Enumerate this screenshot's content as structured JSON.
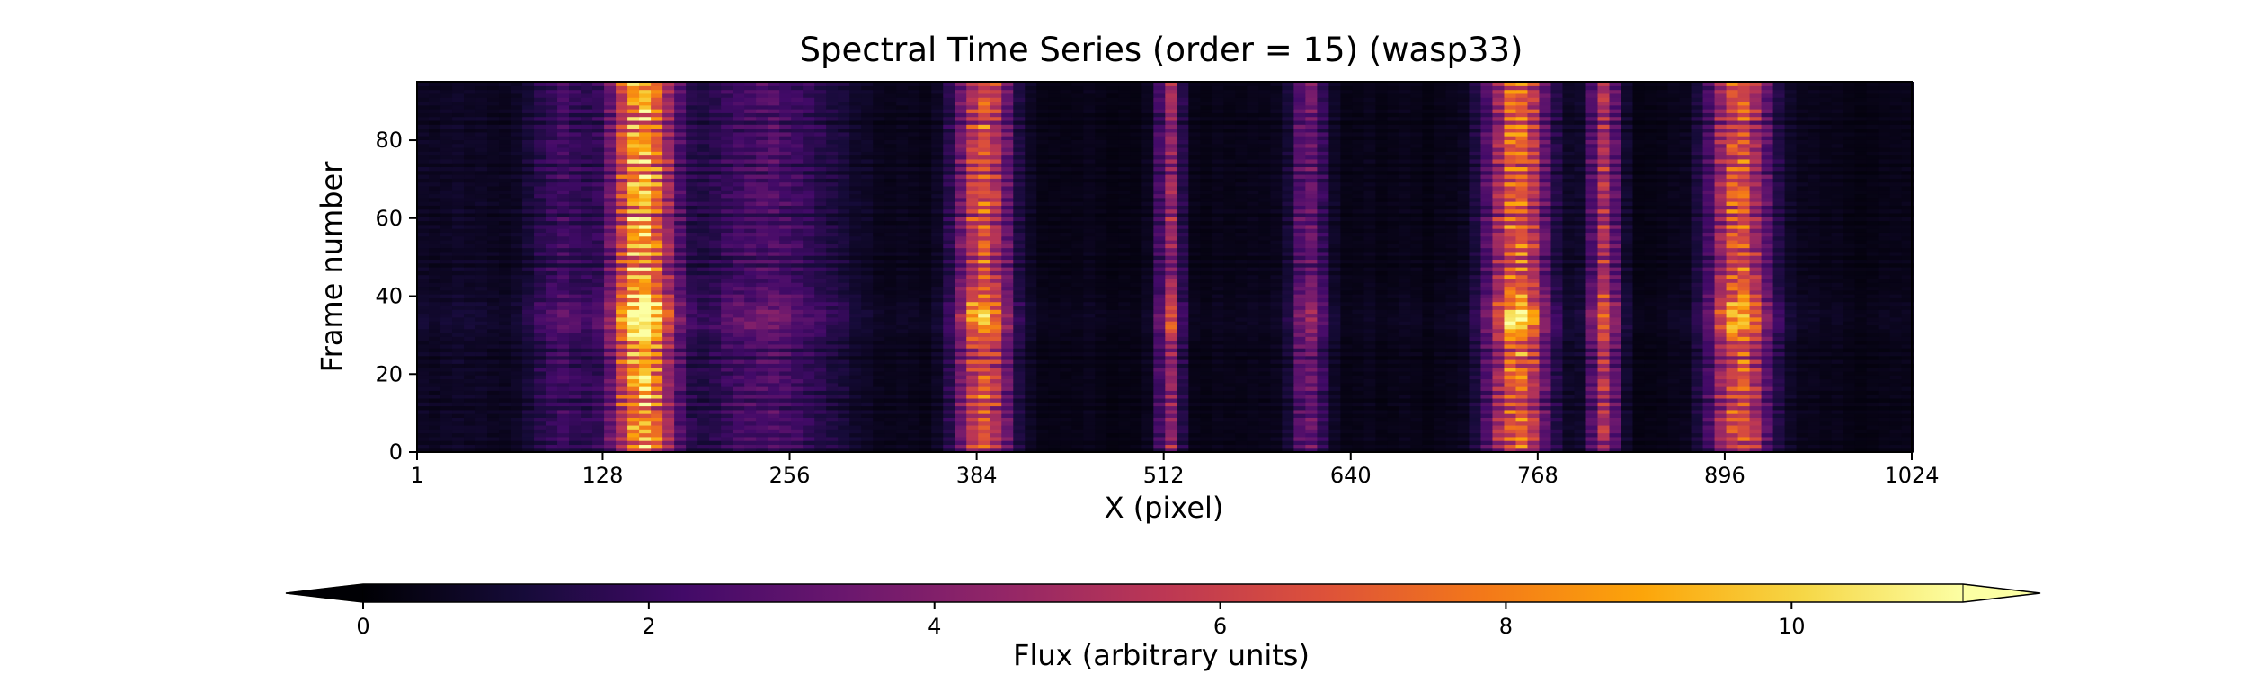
{
  "chart_data": {
    "type": "heatmap",
    "title": "Spectral Time Series (order = 15) (wasp33)",
    "xlabel": "X (pixel)",
    "ylabel": "Frame number",
    "xlim": [
      1,
      1024
    ],
    "ylim": [
      0,
      95
    ],
    "x_ticks": [
      1,
      128,
      256,
      384,
      512,
      640,
      768,
      896,
      1024
    ],
    "x_tick_labels": [
      "1",
      "128",
      "256",
      "384",
      "512",
      "640",
      "768",
      "896",
      "1024"
    ],
    "y_ticks": [
      0,
      20,
      40,
      60,
      80
    ],
    "y_tick_labels": [
      "0",
      "20",
      "40",
      "60",
      "80"
    ],
    "colormap": "inferno",
    "colorbar": {
      "label": "Flux (arbitrary units)",
      "range": [
        0,
        11.2
      ],
      "ticks": [
        0,
        2,
        4,
        6,
        8,
        10
      ],
      "tick_labels": [
        "0",
        "2",
        "4",
        "6",
        "8",
        "10"
      ],
      "extend": "both",
      "orientation": "horizontal"
    },
    "missing_color": "#808080",
    "bright_frame": 35,
    "bands": [
      {
        "x_start": 70,
        "x_end": 128,
        "peak_flux": 2.0
      },
      {
        "x_start": 128,
        "x_end": 180,
        "peak_flux": 10.0
      },
      {
        "x_start": 180,
        "x_end": 300,
        "peak_flux": 2.5
      },
      {
        "x_start": 365,
        "x_end": 410,
        "peak_flux": 7.5
      },
      {
        "x_start": 505,
        "x_end": 525,
        "peak_flux": 5.0
      },
      {
        "x_start": 595,
        "x_end": 625,
        "peak_flux": 3.5
      },
      {
        "x_start": 728,
        "x_end": 778,
        "peak_flux": 8.0
      },
      {
        "x_start": 800,
        "x_end": 825,
        "peak_flux": 5.5
      },
      {
        "x_start": 880,
        "x_end": 930,
        "peak_flux": 7.5
      }
    ]
  }
}
